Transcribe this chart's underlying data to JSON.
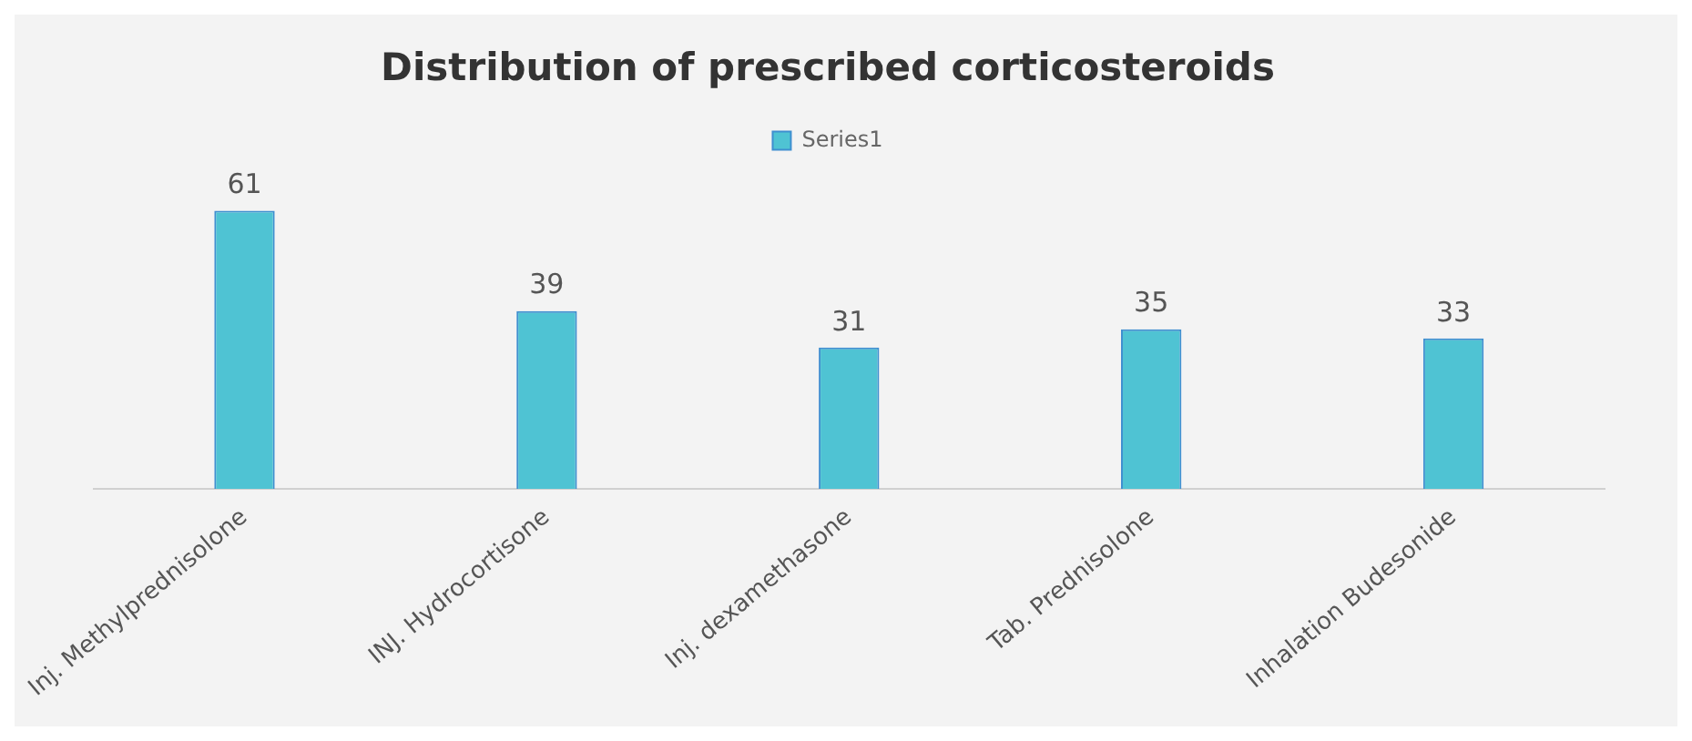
{
  "chart_data": {
    "type": "bar",
    "title": "Distribution of prescribed corticosteroids",
    "categories": [
      "Inj. Methylprednisolone",
      "INJ. Hydrocortisone",
      "Inj. dexamethasone",
      "Tab. Prednisolone",
      "Inhalation Budesonide"
    ],
    "series": [
      {
        "name": "Series1",
        "color": "#4fc3d3",
        "values": [
          61,
          39,
          31,
          35,
          33
        ]
      }
    ],
    "data_labels": true,
    "legend": "top",
    "grid": false
  }
}
